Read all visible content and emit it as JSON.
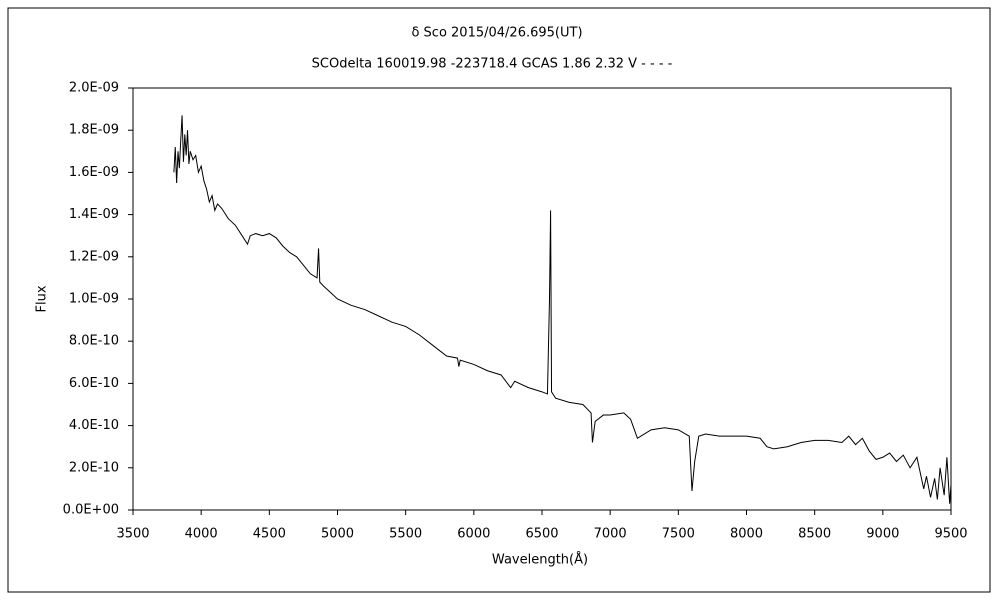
{
  "chart_data": {
    "type": "line",
    "title": "δ Sco    2015/04/26.695(UT)",
    "subtitle": "SCOdelta 160019.98 -223718.4 GCAS 1.86 2.32 V - - - -",
    "xlabel": "Wavelength(Å)",
    "ylabel": "Flux",
    "xlim": [
      3500,
      9500
    ],
    "xticks": [
      3500,
      4000,
      4500,
      5000,
      5500,
      6000,
      6500,
      7000,
      7500,
      8000,
      8500,
      9000,
      9500
    ],
    "ylim": [
      0,
      2e-09
    ],
    "yticks": [
      {
        "value": 0,
        "label": "0.0E+00"
      },
      {
        "value": 2e-10,
        "label": "2.0E-10"
      },
      {
        "value": 4e-10,
        "label": "4.0E-10"
      },
      {
        "value": 6e-10,
        "label": "6.0E-10"
      },
      {
        "value": 8e-10,
        "label": "8.0E-10"
      },
      {
        "value": 1e-09,
        "label": "1.0E-09"
      },
      {
        "value": 1.2e-09,
        "label": "1.2E-09"
      },
      {
        "value": 1.4e-09,
        "label": "1.4E-09"
      },
      {
        "value": 1.6e-09,
        "label": "1.6E-09"
      },
      {
        "value": 1.8e-09,
        "label": "1.8E-09"
      },
      {
        "value": 2e-09,
        "label": "2.0E-09"
      }
    ],
    "grid": false,
    "color": "#000000",
    "x": [
      3800,
      3810,
      3820,
      3830,
      3840,
      3850,
      3860,
      3870,
      3880,
      3890,
      3900,
      3910,
      3920,
      3940,
      3960,
      3980,
      4000,
      4020,
      4040,
      4060,
      4080,
      4100,
      4120,
      4150,
      4200,
      4250,
      4300,
      4340,
      4360,
      4400,
      4450,
      4500,
      4550,
      4600,
      4650,
      4700,
      4750,
      4800,
      4850,
      4861,
      4870,
      4900,
      4950,
      5000,
      5100,
      5200,
      5300,
      5400,
      5500,
      5600,
      5700,
      5800,
      5880,
      5890,
      5900,
      6000,
      6100,
      6200,
      6270,
      6300,
      6400,
      6500,
      6540,
      6555,
      6563,
      6570,
      6600,
      6700,
      6800,
      6860,
      6870,
      6890,
      6950,
      7000,
      7100,
      7150,
      7200,
      7250,
      7300,
      7400,
      7500,
      7580,
      7600,
      7620,
      7650,
      7700,
      7800,
      7900,
      8000,
      8100,
      8150,
      8200,
      8300,
      8400,
      8500,
      8600,
      8700,
      8750,
      8800,
      8850,
      8900,
      8950,
      9000,
      9050,
      9100,
      9150,
      9200,
      9250,
      9300,
      9320,
      9350,
      9380,
      9400,
      9420,
      9450,
      9470,
      9490,
      9500
    ],
    "values": [
      1.6e-09,
      1.72e-09,
      1.55e-09,
      1.7e-09,
      1.62e-09,
      1.75e-09,
      1.87e-09,
      1.65e-09,
      1.78e-09,
      1.68e-09,
      1.8e-09,
      1.64e-09,
      1.7e-09,
      1.66e-09,
      1.68e-09,
      1.6e-09,
      1.63e-09,
      1.56e-09,
      1.52e-09,
      1.46e-09,
      1.49e-09,
      1.42e-09,
      1.45e-09,
      1.43e-09,
      1.38e-09,
      1.35e-09,
      1.3e-09,
      1.26e-09,
      1.3e-09,
      1.31e-09,
      1.3e-09,
      1.31e-09,
      1.29e-09,
      1.25e-09,
      1.22e-09,
      1.2e-09,
      1.16e-09,
      1.12e-09,
      1.1e-09,
      1.24e-09,
      1.08e-09,
      1.06e-09,
      1.03e-09,
      1e-09,
      9.7e-10,
      9.5e-10,
      9.2e-10,
      8.9e-10,
      8.7e-10,
      8.3e-10,
      7.8e-10,
      7.3e-10,
      7.2e-10,
      6.8e-10,
      7.1e-10,
      6.9e-10,
      6.6e-10,
      6.4e-10,
      5.8e-10,
      6.1e-10,
      5.8e-10,
      5.6e-10,
      5.5e-10,
      1e-09,
      1.42e-09,
      5.6e-10,
      5.3e-10,
      5.1e-10,
      5e-10,
      4.6e-10,
      3.2e-10,
      4.2e-10,
      4.5e-10,
      4.5e-10,
      4.6e-10,
      4.3e-10,
      3.4e-10,
      3.6e-10,
      3.8e-10,
      3.9e-10,
      3.8e-10,
      3.5e-10,
      9e-11,
      2.3e-10,
      3.5e-10,
      3.6e-10,
      3.5e-10,
      3.5e-10,
      3.5e-10,
      3.4e-10,
      3e-10,
      2.9e-10,
      3e-10,
      3.2e-10,
      3.3e-10,
      3.3e-10,
      3.2e-10,
      3.5e-10,
      3.1e-10,
      3.4e-10,
      2.8e-10,
      2.4e-10,
      2.5e-10,
      2.7e-10,
      2.3e-10,
      2.6e-10,
      2e-10,
      2.5e-10,
      1e-10,
      1.6e-10,
      6e-11,
      1.5e-10,
      5e-11,
      2e-10,
      7e-11,
      2.5e-10,
      3e-11,
      1.2e-10
    ]
  }
}
